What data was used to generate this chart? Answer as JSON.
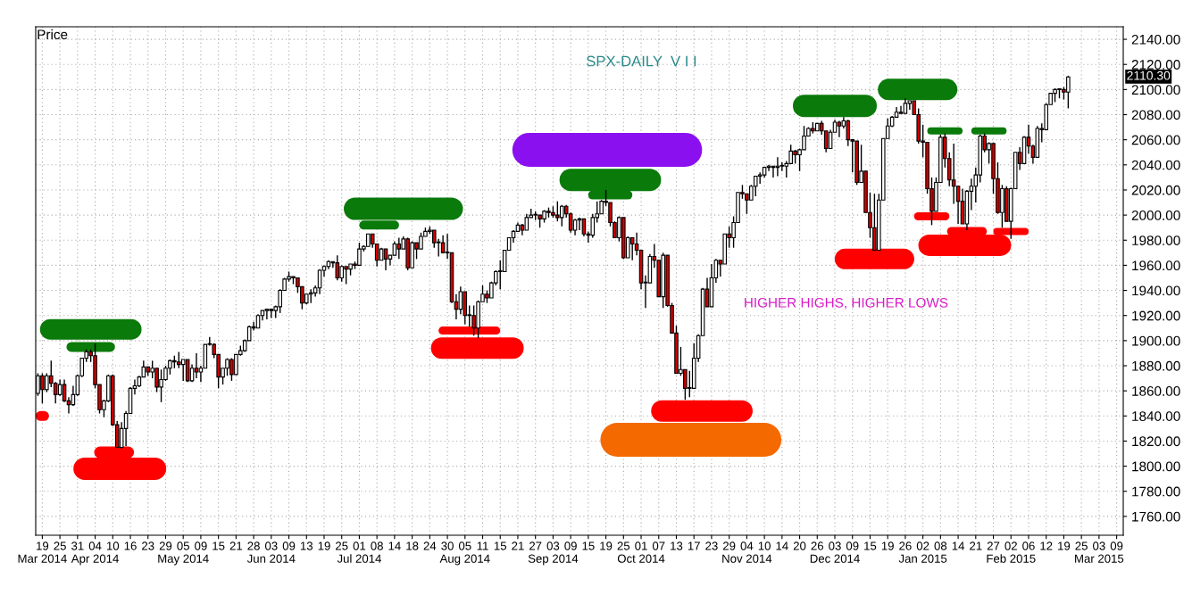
{
  "chart_data": {
    "type": "candlestick",
    "title": "SPX-DAILY  V I I",
    "ylabel": "Price",
    "categories": [
      null,
      "19\nMar 2014",
      null,
      null,
      null,
      "25",
      null,
      null,
      null,
      "31",
      null,
      null,
      null,
      "04\nApr 2014",
      null,
      null,
      null,
      "10",
      null,
      null,
      null,
      "16",
      null,
      null,
      null,
      "23",
      null,
      null,
      null,
      "29",
      null,
      null,
      null,
      "05\nMay 2014",
      null,
      null,
      null,
      "09",
      null,
      null,
      null,
      "15",
      null,
      null,
      null,
      "21",
      null,
      null,
      null,
      "28",
      null,
      null,
      null,
      "03\nJun 2014",
      null,
      null,
      null,
      "09",
      null,
      null,
      null,
      "13",
      null,
      null,
      null,
      "19",
      null,
      null,
      null,
      "25",
      null,
      null,
      null,
      "01\nJul 2014",
      null,
      null,
      null,
      "08",
      null,
      null,
      null,
      "14",
      null,
      null,
      null,
      "18",
      null,
      null,
      null,
      "24",
      null,
      null,
      null,
      "30",
      null,
      null,
      null,
      "05\nAug 2014",
      null,
      null,
      null,
      "11",
      null,
      null,
      null,
      "15",
      null,
      null,
      null,
      "21",
      null,
      null,
      null,
      "27",
      null,
      null,
      null,
      "03\nSep 2014",
      null,
      null,
      null,
      "09",
      null,
      null,
      null,
      "15",
      null,
      null,
      null,
      "19",
      null,
      null,
      null,
      "25",
      null,
      null,
      null,
      "01\nOct 2014",
      null,
      null,
      null,
      "07",
      null,
      null,
      null,
      "13",
      null,
      null,
      null,
      "17",
      null,
      null,
      null,
      "23",
      null,
      null,
      null,
      "29",
      null,
      null,
      null,
      "04\nNov 2014",
      null,
      null,
      null,
      "10",
      null,
      null,
      null,
      "14",
      null,
      null,
      null,
      "20",
      null,
      null,
      null,
      "26",
      null,
      null,
      null,
      "03\nDec 2014",
      null,
      null,
      null,
      "09",
      null,
      null,
      null,
      "15",
      null,
      null,
      null,
      "19",
      null,
      null,
      null,
      "26",
      null,
      null,
      null,
      "02\nJan 2015",
      null,
      null,
      null,
      "08",
      null,
      null,
      null,
      "14",
      null,
      null,
      null,
      "21",
      null,
      null,
      null,
      "27",
      null,
      null,
      null,
      "02\nFeb 2015",
      null,
      null,
      null,
      "06",
      null,
      null,
      null,
      "12",
      null,
      null,
      null,
      "19",
      null,
      null,
      null,
      "25",
      null,
      null,
      null,
      "03\nMar 2015",
      null,
      null,
      null,
      "09",
      null
    ],
    "ohlc": [
      [
        1858,
        1874,
        1856,
        1872
      ],
      [
        1872,
        1874,
        1850,
        1861
      ],
      [
        1861,
        1874,
        1859,
        1872
      ],
      [
        1872,
        1884,
        1863,
        1866
      ],
      [
        1866,
        1867,
        1850,
        1857
      ],
      [
        1857,
        1869,
        1856,
        1865
      ],
      [
        1865,
        1869,
        1851,
        1852
      ],
      [
        1852,
        1855,
        1842,
        1849
      ],
      [
        1849,
        1864,
        1848,
        1857
      ],
      [
        1857,
        1873,
        1856,
        1872
      ],
      [
        1872,
        1886,
        1871,
        1886
      ],
      [
        1886,
        1893,
        1883,
        1891
      ],
      [
        1891,
        1893,
        1883,
        1888
      ],
      [
        1888,
        1898,
        1862,
        1865
      ],
      [
        1865,
        1865,
        1842,
        1845
      ],
      [
        1845,
        1853,
        1839,
        1852
      ],
      [
        1852,
        1873,
        1851,
        1872
      ],
      [
        1872,
        1873,
        1832,
        1833
      ],
      [
        1833,
        1836,
        1815,
        1815
      ],
      [
        1815,
        1835,
        1814,
        1830
      ],
      [
        1830,
        1844,
        1816,
        1842
      ],
      [
        1842,
        1863,
        1842,
        1862
      ],
      [
        1862,
        1869,
        1857,
        1864
      ],
      [
        1864,
        1872,
        1863,
        1871
      ],
      [
        1871,
        1884,
        1871,
        1879
      ],
      [
        1879,
        1879,
        1872,
        1875
      ],
      [
        1875,
        1884,
        1870,
        1878
      ],
      [
        1878,
        1878,
        1859,
        1863
      ],
      [
        1863,
        1877,
        1851,
        1869
      ],
      [
        1869,
        1880,
        1868,
        1878
      ],
      [
        1878,
        1885,
        1873,
        1884
      ],
      [
        1884,
        1888,
        1878,
        1883
      ],
      [
        1883,
        1891,
        1878,
        1881
      ],
      [
        1881,
        1885,
        1868,
        1885
      ],
      [
        1885,
        1885,
        1867,
        1868
      ],
      [
        1868,
        1881,
        1867,
        1878
      ],
      [
        1878,
        1890,
        1870,
        1875
      ],
      [
        1875,
        1880,
        1867,
        1878
      ],
      [
        1878,
        1897,
        1878,
        1897
      ],
      [
        1897,
        1903,
        1896,
        1897
      ],
      [
        1897,
        1898,
        1886,
        1889
      ],
      [
        1889,
        1889,
        1862,
        1871
      ],
      [
        1871,
        1878,
        1865,
        1878
      ],
      [
        1878,
        1886,
        1872,
        1885
      ],
      [
        1885,
        1886,
        1868,
        1873
      ],
      [
        1873,
        1889,
        1873,
        1889
      ],
      [
        1889,
        1896,
        1888,
        1892
      ],
      [
        1892,
        1901,
        1891,
        1900
      ],
      [
        1900,
        1912,
        1900,
        1911
      ],
      [
        1911,
        1915,
        1908,
        1910
      ],
      [
        1910,
        1921,
        1910,
        1920
      ],
      [
        1920,
        1924,
        1916,
        1924
      ],
      [
        1924,
        1925,
        1917,
        1925
      ],
      [
        1925,
        1925,
        1918,
        1924
      ],
      [
        1924,
        1928,
        1918,
        1927
      ],
      [
        1927,
        1941,
        1922,
        1940
      ],
      [
        1940,
        1950,
        1940,
        1949
      ],
      [
        1949,
        1955,
        1947,
        1951
      ],
      [
        1951,
        1951,
        1945,
        1950
      ],
      [
        1950,
        1950,
        1938,
        1943
      ],
      [
        1943,
        1943,
        1925,
        1930
      ],
      [
        1930,
        1937,
        1929,
        1937
      ],
      [
        1937,
        1941,
        1930,
        1938
      ],
      [
        1938,
        1944,
        1935,
        1942
      ],
      [
        1942,
        1957,
        1937,
        1956
      ],
      [
        1956,
        1960,
        1951,
        1959
      ],
      [
        1959,
        1964,
        1957,
        1963
      ],
      [
        1963,
        1963,
        1958,
        1962
      ],
      [
        1962,
        1968,
        1948,
        1950
      ],
      [
        1950,
        1960,
        1947,
        1959
      ],
      [
        1959,
        1959,
        1945,
        1957
      ],
      [
        1957,
        1961,
        1952,
        1961
      ],
      [
        1961,
        1963,
        1957,
        1960
      ],
      [
        1960,
        1978,
        1960,
        1973
      ],
      [
        1973,
        1976,
        1971,
        1975
      ],
      [
        1975,
        1985,
        1975,
        1985
      ],
      [
        1985,
        1985,
        1974,
        1977
      ],
      [
        1977,
        1977,
        1959,
        1964
      ],
      [
        1964,
        1974,
        1964,
        1973
      ],
      [
        1973,
        1973,
        1956,
        1965
      ],
      [
        1965,
        1968,
        1960,
        1968
      ],
      [
        1968,
        1979,
        1968,
        1977
      ],
      [
        1977,
        1982,
        1965,
        1973
      ],
      [
        1973,
        1983,
        1973,
        1981
      ],
      [
        1981,
        1982,
        1956,
        1958
      ],
      [
        1958,
        1979,
        1958,
        1978
      ],
      [
        1978,
        1978,
        1965,
        1973
      ],
      [
        1973,
        1986,
        1973,
        1983
      ],
      [
        1983,
        1990,
        1983,
        1987
      ],
      [
        1987,
        1991,
        1985,
        1988
      ],
      [
        1988,
        1988,
        1974,
        1978
      ],
      [
        1978,
        1981,
        1967,
        1978
      ],
      [
        1978,
        1984,
        1970,
        1970
      ],
      [
        1970,
        1985,
        1965,
        1970
      ],
      [
        1970,
        1970,
        1930,
        1931
      ],
      [
        1931,
        1937,
        1917,
        1925
      ],
      [
        1925,
        1943,
        1921,
        1939
      ],
      [
        1939,
        1939,
        1913,
        1920
      ],
      [
        1920,
        1928,
        1911,
        1920
      ],
      [
        1920,
        1928,
        1904,
        1910
      ],
      [
        1910,
        1932,
        1902,
        1931
      ],
      [
        1931,
        1944,
        1931,
        1937
      ],
      [
        1937,
        1940,
        1930,
        1934
      ],
      [
        1934,
        1947,
        1934,
        1946
      ],
      [
        1946,
        1956,
        1944,
        1955
      ],
      [
        1955,
        1964,
        1941,
        1955
      ],
      [
        1955,
        1972,
        1955,
        1972
      ],
      [
        1972,
        1982,
        1972,
        1982
      ],
      [
        1982,
        1988,
        1978,
        1987
      ],
      [
        1987,
        1994,
        1987,
        1992
      ],
      [
        1992,
        1993,
        1984,
        1988
      ],
      [
        1988,
        2001,
        1988,
        1998
      ],
      [
        1998,
        2005,
        1998,
        2000
      ],
      [
        2000,
        2003,
        1996,
        2000
      ],
      [
        2000,
        2000,
        1990,
        1997
      ],
      [
        1997,
        2004,
        1994,
        2003
      ],
      [
        2003,
        2006,
        1998,
        2002
      ],
      [
        2002,
        2007,
        1998,
        2000
      ],
      [
        2000,
        2011,
        1995,
        1998
      ],
      [
        1998,
        2008,
        1991,
        2007
      ],
      [
        2007,
        2008,
        1998,
        2001
      ],
      [
        2001,
        2002,
        1986,
        1988
      ],
      [
        1988,
        1997,
        1984,
        1996
      ],
      [
        1996,
        1998,
        1988,
        1997
      ],
      [
        1997,
        1997,
        1983,
        1985
      ],
      [
        1985,
        1987,
        1978,
        1984
      ],
      [
        1984,
        2001,
        1982,
        1998
      ],
      [
        1998,
        2011,
        1994,
        2001
      ],
      [
        2001,
        2012,
        2001,
        2011
      ],
      [
        2011,
        2020,
        2007,
        2010
      ],
      [
        2010,
        2010,
        1991,
        1994
      ],
      [
        1994,
        1995,
        1982,
        1982
      ],
      [
        1982,
        1999,
        1979,
        1998
      ],
      [
        1998,
        1998,
        1965,
        1966
      ],
      [
        1966,
        1983,
        1966,
        1982
      ],
      [
        1982,
        1982,
        1964,
        1977
      ],
      [
        1977,
        1986,
        1968,
        1972
      ],
      [
        1972,
        1972,
        1941,
        1946
      ],
      [
        1946,
        1952,
        1926,
        1946
      ],
      [
        1946,
        1969,
        1946,
        1967
      ],
      [
        1967,
        1977,
        1958,
        1964
      ],
      [
        1964,
        1964,
        1935,
        1935
      ],
      [
        1935,
        1970,
        1926,
        1968
      ],
      [
        1968,
        1968,
        1927,
        1928
      ],
      [
        1928,
        1930,
        1906,
        1906
      ],
      [
        1906,
        1912,
        1874,
        1874
      ],
      [
        1874,
        1895,
        1872,
        1877
      ],
      [
        1877,
        1877,
        1853,
        1862
      ],
      [
        1862,
        1876,
        1855,
        1862
      ],
      [
        1862,
        1898,
        1862,
        1886
      ],
      [
        1886,
        1905,
        1883,
        1904
      ],
      [
        1904,
        1942,
        1904,
        1941
      ],
      [
        1941,
        1950,
        1927,
        1927
      ],
      [
        1927,
        1961,
        1927,
        1950
      ],
      [
        1950,
        1965,
        1946,
        1964
      ],
      [
        1964,
        1964,
        1951,
        1961
      ],
      [
        1961,
        1985,
        1961,
        1985
      ],
      [
        1985,
        1991,
        1974,
        1982
      ],
      [
        1982,
        1999,
        1974,
        1994
      ],
      [
        1994,
        2018,
        1994,
        2018
      ],
      [
        2018,
        2024,
        2013,
        2017
      ],
      [
        2017,
        2017,
        2001,
        2012
      ],
      [
        2012,
        2024,
        2012,
        2023
      ],
      [
        2023,
        2031,
        2015,
        2031
      ],
      [
        2031,
        2034,
        2025,
        2032
      ],
      [
        2032,
        2038,
        2030,
        2038
      ],
      [
        2038,
        2040,
        2035,
        2039
      ],
      [
        2039,
        2039,
        2030,
        2038
      ],
      [
        2038,
        2046,
        2031,
        2039
      ],
      [
        2039,
        2042,
        2035,
        2039
      ],
      [
        2039,
        2043,
        2030,
        2041
      ],
      [
        2041,
        2056,
        2041,
        2051
      ],
      [
        2051,
        2052,
        2041,
        2048
      ],
      [
        2048,
        2053,
        2035,
        2052
      ],
      [
        2052,
        2071,
        2052,
        2063
      ],
      [
        2063,
        2070,
        2063,
        2069
      ],
      [
        2069,
        2074,
        2065,
        2067
      ],
      [
        2067,
        2073,
        2067,
        2073
      ],
      [
        2073,
        2075,
        2064,
        2067
      ],
      [
        2067,
        2067,
        2050,
        2053
      ],
      [
        2053,
        2068,
        2053,
        2066
      ],
      [
        2066,
        2076,
        2066,
        2074
      ],
      [
        2074,
        2075,
        2062,
        2071
      ],
      [
        2071,
        2078,
        2069,
        2075
      ],
      [
        2075,
        2076,
        2055,
        2060
      ],
      [
        2060,
        2060,
        2034,
        2059
      ],
      [
        2059,
        2059,
        2024,
        2026
      ],
      [
        2026,
        2056,
        2026,
        2035
      ],
      [
        2035,
        2035,
        2002,
        2002
      ],
      [
        2002,
        2018,
        1982,
        1990
      ],
      [
        1990,
        2017,
        1972,
        1972
      ],
      [
        1972,
        2017,
        1972,
        2012
      ],
      [
        2012,
        2061,
        2012,
        2061
      ],
      [
        2061,
        2077,
        2061,
        2071
      ],
      [
        2071,
        2079,
        2070,
        2078
      ],
      [
        2078,
        2086,
        2078,
        2082
      ],
      [
        2082,
        2087,
        2081,
        2081
      ],
      [
        2081,
        2093,
        2081,
        2089
      ],
      [
        2089,
        2091,
        2084,
        2091
      ],
      [
        2091,
        2091,
        2080,
        2080
      ],
      [
        2080,
        2085,
        2057,
        2059
      ],
      [
        2059,
        2072,
        2046,
        2058
      ],
      [
        2058,
        2058,
        2017,
        2021
      ],
      [
        2021,
        2030,
        1992,
        2003
      ],
      [
        2003,
        2030,
        2003,
        2026
      ],
      [
        2026,
        2064,
        2026,
        2062
      ],
      [
        2062,
        2065,
        2038,
        2045
      ],
      [
        2045,
        2050,
        2023,
        2028
      ],
      [
        2028,
        2057,
        2009,
        2023
      ],
      [
        2023,
        2023,
        1993,
        2011
      ],
      [
        2011,
        2021,
        1993,
        1993
      ],
      [
        1993,
        2020,
        1988,
        2019
      ],
      [
        2019,
        2029,
        2004,
        2023
      ],
      [
        2023,
        2038,
        2010,
        2032
      ],
      [
        2032,
        2064,
        2026,
        2063
      ],
      [
        2063,
        2065,
        2050,
        2052
      ],
      [
        2052,
        2058,
        2041,
        2057
      ],
      [
        2057,
        2057,
        2017,
        2029
      ],
      [
        2029,
        2042,
        2001,
        2002
      ],
      [
        2002,
        2024,
        1990,
        2021
      ],
      [
        2021,
        2023,
        1995,
        1995
      ],
      [
        1995,
        2022,
        1981,
        2021
      ],
      [
        2021,
        2050,
        2021,
        2050
      ],
      [
        2050,
        2054,
        2036,
        2041
      ],
      [
        2041,
        2063,
        2041,
        2062
      ],
      [
        2062,
        2072,
        2049,
        2055
      ],
      [
        2055,
        2056,
        2041,
        2046
      ],
      [
        2046,
        2071,
        2046,
        2069
      ],
      [
        2069,
        2073,
        2058,
        2068
      ],
      [
        2068,
        2089,
        2068,
        2088
      ],
      [
        2088,
        2097,
        2088,
        2097
      ],
      [
        2097,
        2101,
        2090,
        2100
      ],
      [
        2100,
        2100,
        2093,
        2100
      ],
      [
        2100,
        2102,
        2092,
        2098
      ],
      [
        2098,
        2111,
        2085,
        2110
      ],
      null,
      null,
      null,
      null,
      null,
      null,
      null,
      null,
      null,
      null,
      null,
      null
    ],
    "ylim": [
      1745,
      2150
    ],
    "yticks": [
      {
        "value": 1760,
        "label": "1760.00"
      },
      {
        "value": 1780,
        "label": "1780.00"
      },
      {
        "value": 1800,
        "label": "1800.00"
      },
      {
        "value": 1820,
        "label": "1820.00"
      },
      {
        "value": 1840,
        "label": "1840.00"
      },
      {
        "value": 1860,
        "label": "1860.00"
      },
      {
        "value": 1880,
        "label": "1880.00"
      },
      {
        "value": 1900,
        "label": "1900.00"
      },
      {
        "value": 1920,
        "label": "1920.00"
      },
      {
        "value": 1940,
        "label": "1940.00"
      },
      {
        "value": 1960,
        "label": "1960.00"
      },
      {
        "value": 1980,
        "label": "1980.00"
      },
      {
        "value": 2000,
        "label": "2000.00"
      },
      {
        "value": 2020,
        "label": "2020.00"
      },
      {
        "value": 2040,
        "label": "2040.00"
      },
      {
        "value": 2060,
        "label": "2060.00"
      },
      {
        "value": 2080,
        "label": "2080.00"
      },
      {
        "value": 2100,
        "label": "2100.00"
      },
      {
        "value": 2120,
        "label": "2120.00"
      },
      {
        "value": 2140,
        "label": "2140.00"
      }
    ],
    "grid": true,
    "annotations": [
      "HIGHER HIGHS, HIGHER LOWS",
      "2110.30"
    ]
  }
}
